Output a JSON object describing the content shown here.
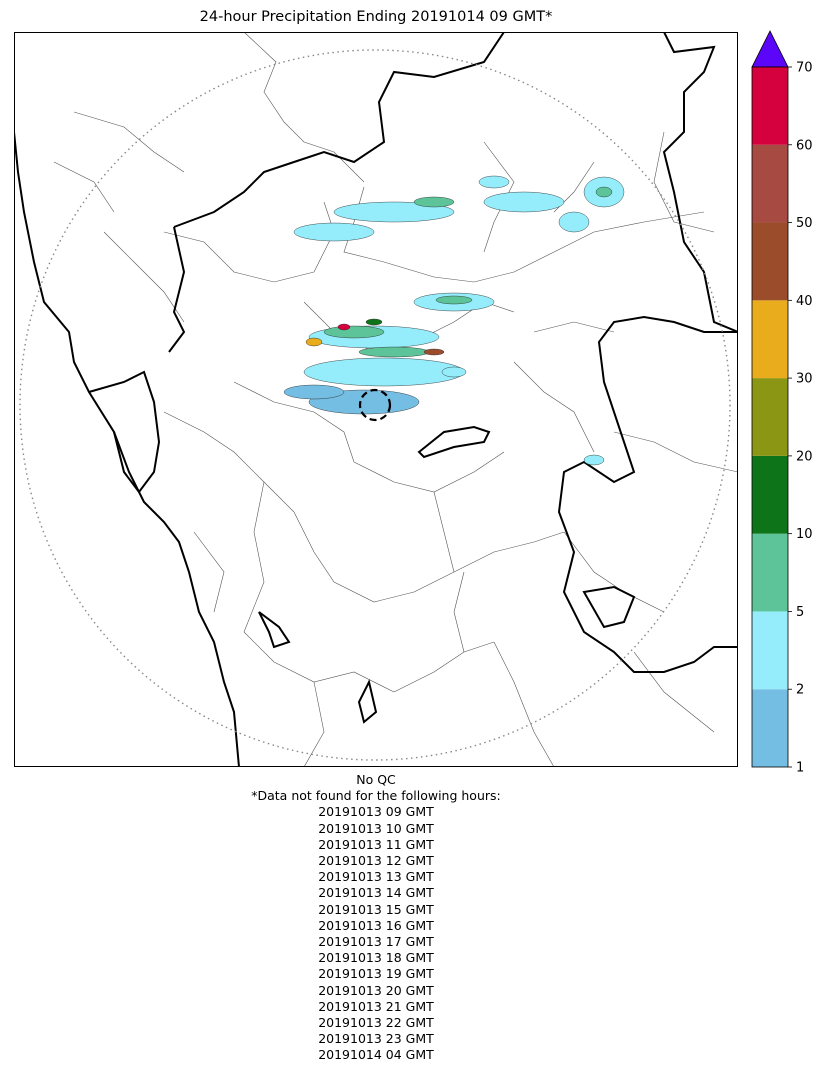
{
  "title": "24-hour Precipitation Ending 20191014 09 GMT*",
  "colorbar": {
    "levels": [
      1,
      2,
      5,
      10,
      20,
      30,
      40,
      50,
      60,
      70
    ],
    "tick_labels": [
      "1",
      "2",
      "5",
      "10",
      "20",
      "30",
      "40",
      "50",
      "60",
      "70"
    ],
    "colors": [
      "#74bde3",
      "#95edfc",
      "#5dc49a",
      "#0e7419",
      "#8b9615",
      "#e9ac1d",
      "#9b4d2b",
      "#a64a42",
      "#d5013f"
    ],
    "extend_color": "#5b06f8",
    "extend": "max"
  },
  "footer": {
    "qc_note": "No QC",
    "missing_header": "*Data not found for the following hours:",
    "missing_hours": [
      "20191013 09 GMT",
      "20191013 10 GMT",
      "20191013 11 GMT",
      "20191013 12 GMT",
      "20191013 13 GMT",
      "20191013 14 GMT",
      "20191013 15 GMT",
      "20191013 16 GMT",
      "20191013 17 GMT",
      "20191013 18 GMT",
      "20191013 19 GMT",
      "20191013 20 GMT",
      "20191013 21 GMT",
      "20191013 22 GMT",
      "20191013 23 GMT",
      "20191014 04 GMT"
    ]
  },
  "map": {
    "range_ring": "dotted-gray",
    "radar_site_marker": "dashed-circle"
  }
}
